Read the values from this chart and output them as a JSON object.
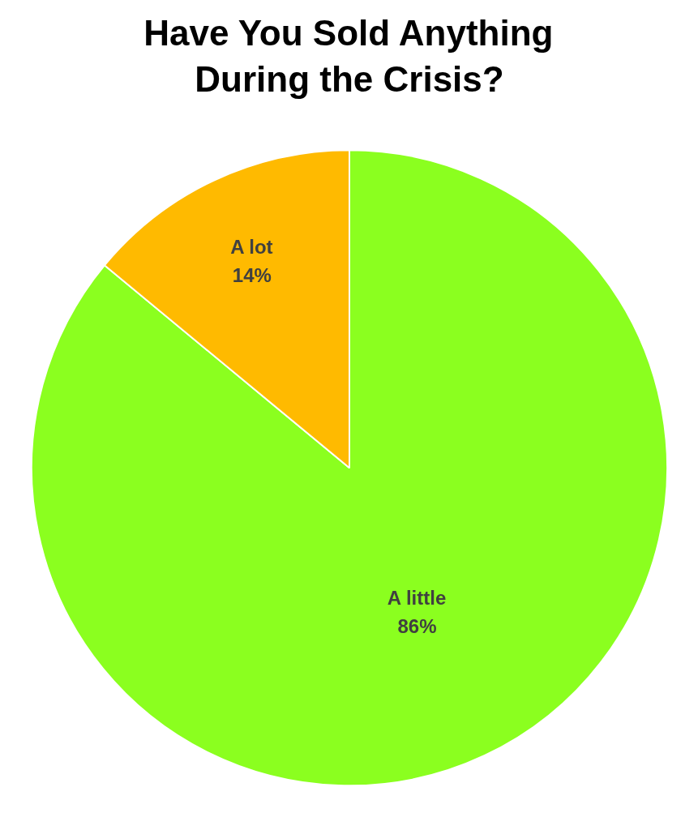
{
  "chart_data": {
    "type": "pie",
    "title": "Have You Sold Anything During the Crisis?",
    "categories": [
      "A little",
      "A lot"
    ],
    "values": [
      86,
      14
    ],
    "colors": [
      "#8bff1f",
      "#ffba00"
    ],
    "value_labels": [
      "86%",
      "14%"
    ],
    "legend": false
  }
}
